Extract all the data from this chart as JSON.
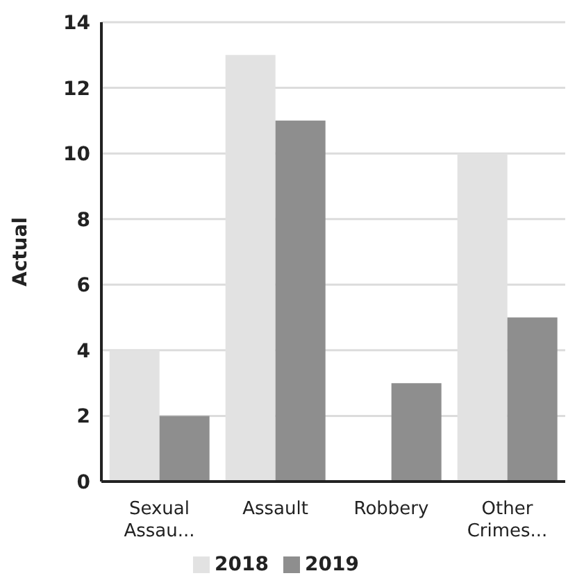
{
  "chart_data": {
    "type": "bar",
    "ylabel": "Actual",
    "categories": [
      "Sexual Assau...",
      "Assault",
      "Robbery",
      "Other Crimes..."
    ],
    "series": [
      {
        "name": "2018",
        "color": "#e2e2e2",
        "values": [
          4,
          13,
          0,
          10
        ]
      },
      {
        "name": "2019",
        "color": "#8e8e8e",
        "values": [
          2,
          11,
          3,
          5
        ]
      }
    ],
    "ylim": [
      0,
      14
    ],
    "yticks": [
      0,
      2,
      4,
      6,
      8,
      10,
      12,
      14
    ],
    "grid": "y",
    "legend": "bottom"
  }
}
